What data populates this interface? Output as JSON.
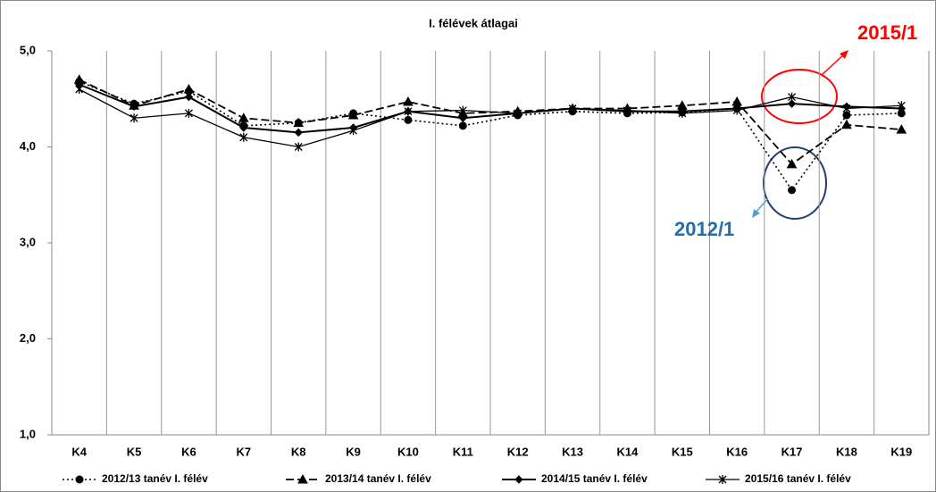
{
  "chart_data": {
    "type": "line",
    "title": "I. félévek átlagai",
    "categories": [
      "K4",
      "K5",
      "K6",
      "K7",
      "K8",
      "K9",
      "K10",
      "K11",
      "K12",
      "K13",
      "K14",
      "K15",
      "K16",
      "K17",
      "K18",
      "K19"
    ],
    "series": [
      {
        "name": "2012/13 tanév I. félév",
        "color": "#000000",
        "style": "dotted",
        "marker": "circle",
        "values": [
          4.68,
          4.45,
          4.58,
          4.22,
          4.25,
          4.35,
          4.28,
          4.22,
          4.33,
          4.37,
          4.35,
          4.36,
          4.4,
          3.55,
          4.33,
          4.35
        ]
      },
      {
        "name": "2013/14 tanév I. félév",
        "color": "#000000",
        "style": "dashed",
        "marker": "triangle",
        "values": [
          4.7,
          4.43,
          4.6,
          4.3,
          4.25,
          4.33,
          4.47,
          4.35,
          4.37,
          4.4,
          4.4,
          4.43,
          4.47,
          3.82,
          4.23,
          4.18
        ]
      },
      {
        "name": "2014/15 tanév I. félév",
        "color": "#000000",
        "style": "solid",
        "marker": "diamond",
        "values": [
          4.65,
          4.42,
          4.52,
          4.2,
          4.15,
          4.2,
          4.37,
          4.3,
          4.35,
          4.4,
          4.37,
          4.37,
          4.4,
          4.45,
          4.42,
          4.4
        ]
      },
      {
        "name": "2015/16 tanév I. félév",
        "color": "#000000",
        "style": "thin",
        "marker": "star",
        "values": [
          4.6,
          4.3,
          4.35,
          4.1,
          4.0,
          4.17,
          4.37,
          4.38,
          4.35,
          4.4,
          4.38,
          4.35,
          4.38,
          4.52,
          4.4,
          4.43
        ]
      }
    ],
    "ylim": [
      1,
      5
    ],
    "yticks": [
      {
        "value": 1,
        "label": "1,0"
      },
      {
        "value": 2,
        "label": "2,0"
      },
      {
        "value": 3,
        "label": "3,0"
      },
      {
        "value": 4,
        "label": "4,0"
      },
      {
        "value": 5,
        "label": "5,0"
      }
    ],
    "grid": true,
    "annotations": [
      {
        "text": "2015/1",
        "color": "#ff0000"
      },
      {
        "text": "2012/1",
        "color": "#1f6fb0"
      }
    ]
  }
}
